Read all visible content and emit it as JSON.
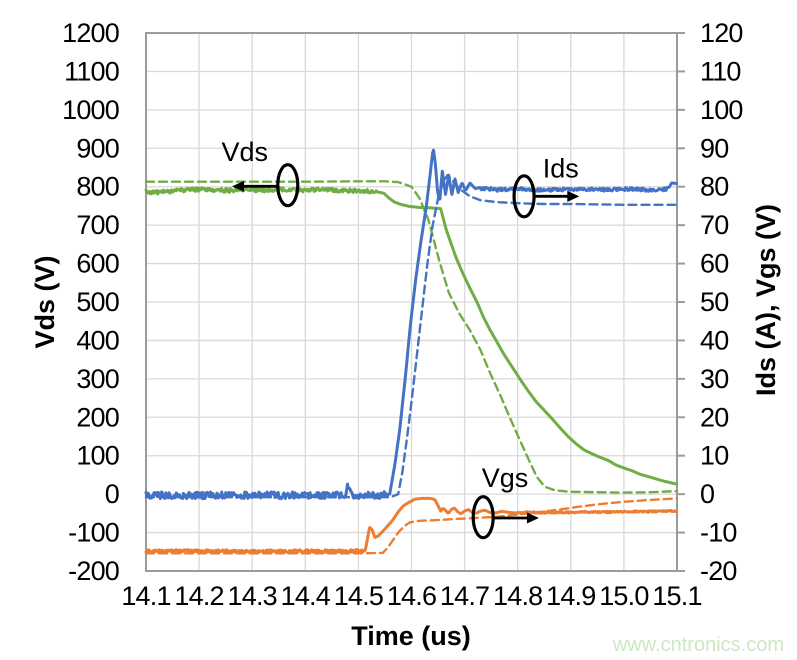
{
  "watermark": "www.cntronics.com",
  "chart_data": {
    "type": "line",
    "xlabel": "Time (us)",
    "ylabel_left": "Vds (V)",
    "ylabel_right": "Ids (A), Vgs (V)",
    "xlim": [
      14.1,
      15.1
    ],
    "ylim_left": [
      -200,
      1200
    ],
    "ylim_right": [
      -20,
      120
    ],
    "grid": true,
    "grid_color": "#d9d9d9",
    "border_color": "#9b9b9b",
    "x_ticks": [
      14.1,
      14.2,
      14.3,
      14.4,
      14.5,
      14.6,
      14.7,
      14.8,
      14.9,
      15.0,
      15.1
    ],
    "x_tick_labels": [
      "14.1",
      "14.2",
      "14.3",
      "14.4",
      "14.5",
      "14.6",
      "14.7",
      "14.8",
      "14.9",
      "15.0",
      "15.1"
    ],
    "left_ticks": [
      1200,
      1100,
      1000,
      900,
      800,
      700,
      600,
      500,
      400,
      300,
      200,
      100,
      0,
      -100,
      -200
    ],
    "left_tick_labels": [
      "1200",
      "1100",
      "1000",
      "900",
      "800",
      "700",
      "600",
      "500",
      "400",
      "300",
      "200",
      "100",
      "0",
      "-100",
      "-200"
    ],
    "right_ticks": [
      120,
      110,
      100,
      90,
      80,
      70,
      60,
      50,
      40,
      30,
      20,
      10,
      0,
      -10,
      -20
    ],
    "right_tick_labels": [
      "120",
      "110",
      "100",
      "90",
      "80",
      "70",
      "60",
      "50",
      "40",
      "30",
      "20",
      "10",
      "0",
      "-10",
      "-20"
    ],
    "series": [
      {
        "name": "Vds_dashed",
        "axis": "left",
        "color": "#70ad47",
        "style": "dashed",
        "width": 2.4,
        "points": [
          [
            14.1,
            813
          ],
          [
            14.2,
            813
          ],
          [
            14.3,
            813
          ],
          [
            14.4,
            813
          ],
          [
            14.5,
            814
          ],
          [
            14.55,
            814
          ],
          [
            14.575,
            812
          ],
          [
            14.6,
            800
          ],
          [
            14.615,
            770
          ],
          [
            14.632,
            713
          ],
          [
            14.652,
            609
          ],
          [
            14.67,
            525
          ],
          [
            14.69,
            470
          ],
          [
            14.71,
            427
          ],
          [
            14.73,
            375
          ],
          [
            14.748,
            315
          ],
          [
            14.767,
            258
          ],
          [
            14.785,
            200
          ],
          [
            14.804,
            141
          ],
          [
            14.823,
            83
          ],
          [
            14.836,
            45
          ],
          [
            14.851,
            19
          ],
          [
            14.87,
            10
          ],
          [
            14.9,
            6
          ],
          [
            14.95,
            5
          ],
          [
            15.0,
            4
          ],
          [
            15.05,
            5
          ],
          [
            15.1,
            8
          ]
        ]
      },
      {
        "name": "Vds_solid",
        "axis": "left",
        "color": "#70ad47",
        "style": "solid",
        "width": 3,
        "points": [
          [
            14.1,
            788
          ],
          [
            14.12,
            785
          ],
          [
            14.14,
            787
          ],
          [
            14.16,
            790
          ],
          [
            14.18,
            792
          ],
          [
            14.2,
            793
          ],
          [
            14.23,
            791
          ],
          [
            14.26,
            790
          ],
          [
            14.29,
            792
          ],
          [
            14.32,
            791
          ],
          [
            14.35,
            793
          ],
          [
            14.38,
            792
          ],
          [
            14.41,
            791
          ],
          [
            14.44,
            792
          ],
          [
            14.47,
            789
          ],
          [
            14.5,
            790
          ],
          [
            14.53,
            788
          ],
          [
            14.548,
            783
          ],
          [
            14.558,
            770
          ],
          [
            14.568,
            760
          ],
          [
            14.58,
            754
          ],
          [
            14.595,
            749
          ],
          [
            14.615,
            746
          ],
          [
            14.635,
            745
          ],
          [
            14.655,
            743
          ],
          [
            14.665,
            690
          ],
          [
            14.675,
            650
          ],
          [
            14.685,
            612
          ],
          [
            14.695,
            580
          ],
          [
            14.705,
            550
          ],
          [
            14.715,
            522
          ],
          [
            14.725,
            495
          ],
          [
            14.735,
            462
          ],
          [
            14.748,
            427
          ],
          [
            14.76,
            398
          ],
          [
            14.775,
            362
          ],
          [
            14.79,
            330
          ],
          [
            14.805,
            298
          ],
          [
            14.82,
            268
          ],
          [
            14.835,
            240
          ],
          [
            14.85,
            218
          ],
          [
            14.865,
            196
          ],
          [
            14.88,
            172
          ],
          [
            14.895,
            150
          ],
          [
            14.91,
            131
          ],
          [
            14.925,
            115
          ],
          [
            14.94,
            105
          ],
          [
            14.955,
            96
          ],
          [
            14.97,
            88
          ],
          [
            14.985,
            76
          ],
          [
            15.0,
            68
          ],
          [
            15.015,
            61
          ],
          [
            15.03,
            52
          ],
          [
            15.045,
            46
          ],
          [
            15.06,
            40
          ],
          [
            15.075,
            34
          ],
          [
            15.09,
            29
          ],
          [
            15.1,
            26
          ]
        ],
        "noise": [
          {
            "t0": 14.1,
            "t1": 14.535,
            "amp": 5,
            "bias": "sym"
          }
        ]
      },
      {
        "name": "Ids_dashed",
        "axis": "right",
        "color": "#4472c4",
        "style": "dashed",
        "width": 2.4,
        "points": [
          [
            14.1,
            -0.8
          ],
          [
            14.3,
            -0.8
          ],
          [
            14.5,
            -0.8
          ],
          [
            14.56,
            -0.8
          ],
          [
            14.575,
            0
          ],
          [
            14.583,
            6
          ],
          [
            14.591,
            14
          ],
          [
            14.6,
            24
          ],
          [
            14.61,
            36
          ],
          [
            14.62,
            48
          ],
          [
            14.63,
            60
          ],
          [
            14.64,
            70
          ],
          [
            14.65,
            77
          ],
          [
            14.66,
            81.5
          ],
          [
            14.668,
            83
          ],
          [
            14.678,
            81.5
          ],
          [
            14.69,
            79.5
          ],
          [
            14.71,
            77.5
          ],
          [
            14.73,
            76.5
          ],
          [
            14.76,
            76
          ],
          [
            14.8,
            75.7
          ],
          [
            14.85,
            75.5
          ],
          [
            14.9,
            75.5
          ],
          [
            15.0,
            75.3
          ],
          [
            15.1,
            75.3
          ]
        ]
      },
      {
        "name": "Ids_solid",
        "axis": "right",
        "color": "#4472c4",
        "style": "solid",
        "width": 3,
        "points": [
          [
            14.1,
            -0.3
          ],
          [
            14.15,
            -0.3
          ],
          [
            14.2,
            -0.3
          ],
          [
            14.25,
            -0.3
          ],
          [
            14.3,
            -0.3
          ],
          [
            14.35,
            -0.3
          ],
          [
            14.4,
            -0.3
          ],
          [
            14.45,
            -0.3
          ],
          [
            14.475,
            -0.3
          ],
          [
            14.48,
            2.8
          ],
          [
            14.486,
            -0.3
          ],
          [
            14.52,
            -0.3
          ],
          [
            14.545,
            -0.3
          ],
          [
            14.559,
            0
          ],
          [
            14.569,
            8
          ],
          [
            14.578,
            17
          ],
          [
            14.588,
            30
          ],
          [
            14.598,
            44
          ],
          [
            14.608,
            56
          ],
          [
            14.618,
            66
          ],
          [
            14.628,
            75
          ],
          [
            14.634,
            82
          ],
          [
            14.641,
            90
          ],
          [
            14.645,
            86
          ],
          [
            14.649,
            79
          ],
          [
            14.653,
            76
          ],
          [
            14.658,
            84
          ],
          [
            14.664,
            78
          ],
          [
            14.67,
            83
          ],
          [
            14.676,
            78
          ],
          [
            14.682,
            82
          ],
          [
            14.688,
            78.5
          ],
          [
            14.695,
            81
          ],
          [
            14.702,
            79
          ],
          [
            14.71,
            81
          ],
          [
            14.72,
            79.5
          ],
          [
            14.735,
            80
          ],
          [
            14.76,
            79.6
          ],
          [
            14.8,
            79.8
          ],
          [
            14.85,
            79.5
          ],
          [
            14.9,
            79.8
          ],
          [
            14.95,
            79.6
          ],
          [
            15.0,
            79.8
          ],
          [
            15.05,
            79.6
          ],
          [
            15.085,
            79.8
          ],
          [
            15.09,
            81
          ],
          [
            15.1,
            80.8
          ]
        ],
        "noise": [
          {
            "t0": 14.1,
            "t1": 14.552,
            "amp": 0.9,
            "bias": "sym"
          },
          {
            "t0": 14.73,
            "t1": 15.08,
            "amp": 0.8,
            "bias": "down"
          }
        ]
      },
      {
        "name": "Vgs_dashed",
        "axis": "right",
        "color": "#ed7d31",
        "style": "dashed",
        "width": 2.4,
        "points": [
          [
            14.1,
            -15.4
          ],
          [
            14.2,
            -15.4
          ],
          [
            14.3,
            -15.4
          ],
          [
            14.4,
            -15.4
          ],
          [
            14.5,
            -15.4
          ],
          [
            14.546,
            -15.3
          ],
          [
            14.556,
            -13.8
          ],
          [
            14.566,
            -11.8
          ],
          [
            14.576,
            -9.8
          ],
          [
            14.586,
            -8.4
          ],
          [
            14.596,
            -7.4
          ],
          [
            14.61,
            -7.0
          ],
          [
            14.64,
            -6.8
          ],
          [
            14.68,
            -6.5
          ],
          [
            14.72,
            -6.2
          ],
          [
            14.76,
            -5.9
          ],
          [
            14.8,
            -5.3
          ],
          [
            14.84,
            -4.7
          ],
          [
            14.88,
            -4.0
          ],
          [
            14.92,
            -3.2
          ],
          [
            14.96,
            -2.5
          ],
          [
            15.0,
            -2.0
          ],
          [
            15.05,
            -1.5
          ],
          [
            15.1,
            -1.1
          ]
        ]
      },
      {
        "name": "Vgs_solid",
        "axis": "right",
        "color": "#ed7d31",
        "style": "solid",
        "width": 3,
        "points": [
          [
            14.1,
            -14.8
          ],
          [
            14.2,
            -14.8
          ],
          [
            14.3,
            -14.9
          ],
          [
            14.4,
            -14.8
          ],
          [
            14.48,
            -14.8
          ],
          [
            14.513,
            -14.7
          ],
          [
            14.518,
            -11.0
          ],
          [
            14.521,
            -8.6
          ],
          [
            14.526,
            -9.3
          ],
          [
            14.531,
            -11.3
          ],
          [
            14.537,
            -10.9
          ],
          [
            14.545,
            -9.8
          ],
          [
            14.555,
            -8.3
          ],
          [
            14.565,
            -6.7
          ],
          [
            14.575,
            -4.6
          ],
          [
            14.585,
            -3.0
          ],
          [
            14.597,
            -2.0
          ],
          [
            14.607,
            -1.3
          ],
          [
            14.62,
            -1.1
          ],
          [
            14.635,
            -1.1
          ],
          [
            14.644,
            -1.4
          ],
          [
            14.65,
            -3.0
          ],
          [
            14.655,
            -4.4
          ],
          [
            14.659,
            -3.7
          ],
          [
            14.664,
            -4.2
          ],
          [
            14.669,
            -5.0
          ],
          [
            14.675,
            -4.0
          ],
          [
            14.681,
            -3.6
          ],
          [
            14.687,
            -4.6
          ],
          [
            14.693,
            -5.1
          ],
          [
            14.7,
            -4.4
          ],
          [
            14.707,
            -4.0
          ],
          [
            14.714,
            -4.7
          ],
          [
            14.722,
            -5.0
          ],
          [
            14.73,
            -4.4
          ],
          [
            14.739,
            -4.2
          ],
          [
            14.748,
            -4.8
          ],
          [
            14.758,
            -4.9
          ],
          [
            14.769,
            -4.5
          ],
          [
            14.781,
            -4.7
          ],
          [
            14.795,
            -4.9
          ],
          [
            14.82,
            -4.7
          ],
          [
            14.85,
            -4.8
          ],
          [
            14.9,
            -4.7
          ],
          [
            14.95,
            -4.7
          ],
          [
            15.0,
            -4.6
          ],
          [
            15.05,
            -4.5
          ],
          [
            15.1,
            -4.4
          ]
        ],
        "noise": [
          {
            "t0": 14.1,
            "t1": 14.51,
            "amp": 0.35,
            "bias": "sym"
          },
          {
            "t0": 14.8,
            "t1": 15.1,
            "amp": 0.2,
            "bias": "sym"
          }
        ]
      }
    ],
    "annotations": [
      {
        "text": "Vds",
        "text_t": 14.286,
        "text_v": 89.0,
        "ellipse_t": 14.367,
        "ellipse_v": 80.4,
        "arrow_dir": "left",
        "arrow_t1": 14.349,
        "arrow_t2": 14.262,
        "arrow_v": 80.1
      },
      {
        "text": "Ids",
        "text_t": 14.881,
        "text_v": 84.8,
        "ellipse_t": 14.812,
        "ellipse_v": 77.5,
        "arrow_dir": "right",
        "arrow_t1": 14.831,
        "arrow_t2": 14.916,
        "arrow_v": 77.5
      },
      {
        "text": "Vgs",
        "text_t": 14.776,
        "text_v": 4.2,
        "ellipse_t": 14.735,
        "ellipse_v": -6.0,
        "arrow_dir": "right",
        "arrow_t1": 14.753,
        "arrow_t2": 14.84,
        "arrow_v": -6.2
      }
    ]
  }
}
